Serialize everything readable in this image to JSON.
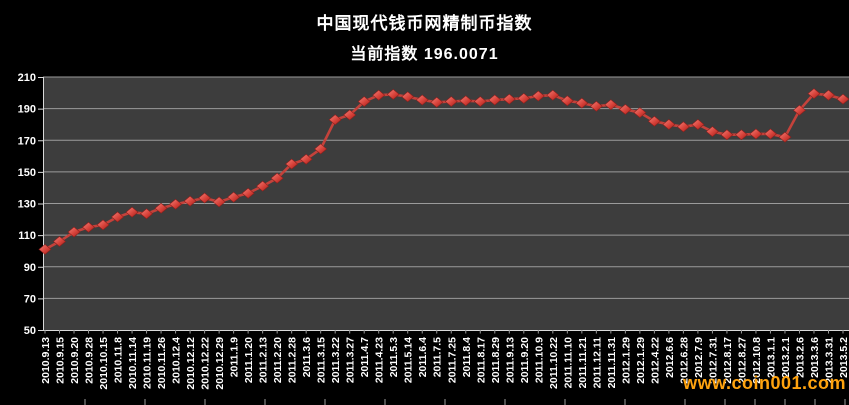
{
  "title": "中国现代钱币网精制币指数",
  "subtitle": "当前指数 196.0071",
  "current_index": "196.0071",
  "watermark": "www.coin001.com",
  "colors": {
    "background": "#000000",
    "plot_background": "#3d3d3d",
    "gridline": "#9b9b9b",
    "axis": "#d9d9d9",
    "text": "#ffffff",
    "line": "#c4423b",
    "marker_light": "#f2837b",
    "marker_mid": "#d8423a",
    "marker_dark": "#9c1f1a",
    "marker_edge": "#8c1f1c",
    "watermark": "#ffa30f"
  },
  "chart_data": {
    "type": "line",
    "title": "中国现代钱币网精制币指数",
    "subtitle": "当前指数 196.0071",
    "xlabel": "",
    "ylabel": "",
    "ylim": [
      50,
      210
    ],
    "yticks": [
      50,
      70,
      90,
      110,
      130,
      150,
      170,
      190,
      210
    ],
    "grid": true,
    "legend": false,
    "marker": "diamond",
    "categories": [
      "2010.9.13",
      "2010.9.15",
      "2010.9.20",
      "2010.9.28",
      "2010.10.15",
      "2010.11.8",
      "2010.11.14",
      "2010.11.19",
      "2010.11.26",
      "2010.12.4",
      "2010.12.12",
      "2010.12.22",
      "2010.12.29",
      "2011.1.9",
      "2011.1.20",
      "2011.2.13",
      "2011.2.20",
      "2011.2.28",
      "2011.3.6",
      "2011.3.15",
      "2011.3.22",
      "2011.3.27",
      "2011.4.7",
      "2011.4.23",
      "2011.5.3",
      "2011.5.14",
      "2011.6.4",
      "2011.7.5",
      "2011.7.25",
      "2011.8.4",
      "2011.8.17",
      "2011.8.29",
      "2011.9.13",
      "2011.9.20",
      "2011.10.9",
      "2011.10.22",
      "2011.11.10",
      "2011.11.21",
      "2011.12.11",
      "2011.11.31",
      "2012.1.29",
      "2012.1.29",
      "2012.4.22",
      "2012.6.6",
      "2012.6.28",
      "2012.7.9",
      "2012.7.31",
      "2012.8.17",
      "2012.8.27",
      "2012.10.8",
      "2013.1.1",
      "2013.2.1",
      "2013.2.6",
      "2013.3.6",
      "2013.3.31",
      "2013.5.2"
    ],
    "values": [
      101,
      106,
      112,
      115,
      116.5,
      121.5,
      124.5,
      123.5,
      127,
      129.5,
      131.5,
      133.5,
      131,
      134,
      136.5,
      141,
      146,
      155,
      158,
      164.5,
      183,
      186,
      194.5,
      198.5,
      199,
      197.5,
      195.5,
      194,
      194.5,
      195,
      194.5,
      195.5,
      196,
      196.5,
      198,
      198.5,
      195,
      193.5,
      191.5,
      192.5,
      189.5,
      187.5,
      182,
      180,
      178.5,
      180,
      175.5,
      173.5,
      173.5,
      174,
      174,
      172,
      189,
      199.5,
      198.5,
      196.0071
    ]
  }
}
